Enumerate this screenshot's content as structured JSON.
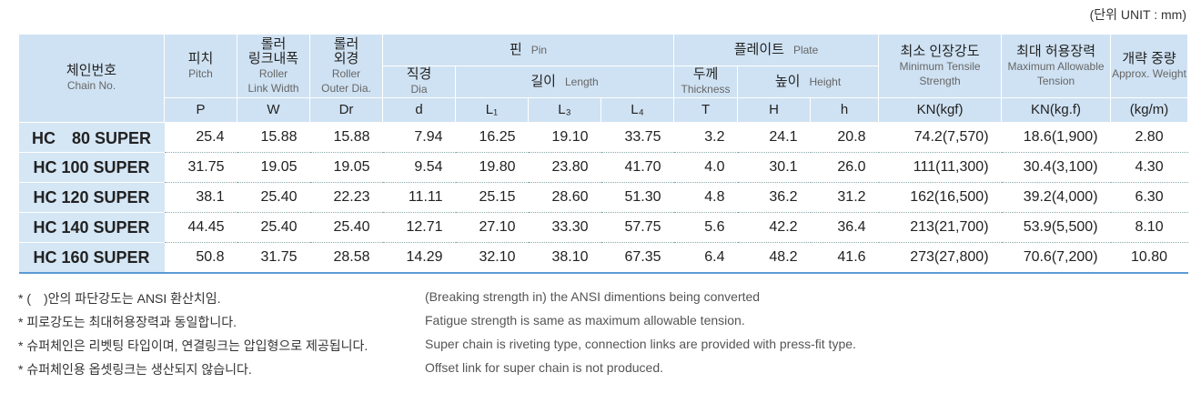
{
  "unit": "(단위 UNIT : mm)",
  "header": {
    "chain": {
      "ko": "체인번호",
      "en": "Chain No."
    },
    "pitch": {
      "ko": "피치",
      "en": "Pitch",
      "sym": "P"
    },
    "width": {
      "ko": [
        "롤러",
        "링크내폭"
      ],
      "en": [
        "Roller",
        "Link Width"
      ],
      "sym": "W"
    },
    "outer": {
      "ko": [
        "롤러",
        "외경"
      ],
      "en": [
        "Roller",
        "Outer Dia."
      ],
      "sym": "Dr"
    },
    "pin": {
      "ko": "핀",
      "en": "Pin"
    },
    "dia": {
      "ko": "직경",
      "en": "Dia",
      "sym": "d"
    },
    "length": {
      "ko": "길이",
      "en": "Length",
      "syms": [
        "L₁",
        "L₃",
        "L₄"
      ]
    },
    "plate": {
      "ko": "플레이트",
      "en": "Plate"
    },
    "thick": {
      "ko": "두께",
      "en": "Thickness",
      "sym": "T"
    },
    "height": {
      "ko": "높이",
      "en": "Height",
      "syms": [
        "H",
        "h"
      ]
    },
    "tensile": {
      "ko": "최소 인장강도",
      "en": [
        "Minimum Tensile",
        "Strength"
      ],
      "sym": "KN(kgf)"
    },
    "allow": {
      "ko": "최대 허용장력",
      "en": [
        "Maximum Allowable",
        "Tension"
      ],
      "sym": "KN(kg.f)"
    },
    "weight": {
      "ko": "개략 중량",
      "en": "Approx. Weight",
      "sym": "(kg/m)"
    }
  },
  "rows": [
    [
      "HC　80 SUPER",
      "25.4",
      "15.88",
      "15.88",
      "7.94",
      "16.25",
      "19.10",
      "33.75",
      "3.2",
      "24.1",
      "20.8",
      "74.2(7,570)",
      "18.6(1,900)",
      "2.80"
    ],
    [
      "HC 100 SUPER",
      "31.75",
      "19.05",
      "19.05",
      "9.54",
      "19.80",
      "23.80",
      "41.70",
      "4.0",
      "30.1",
      "26.0",
      "111(11,300)",
      "30.4(3,100)",
      "4.30"
    ],
    [
      "HC 120 SUPER",
      "38.1",
      "25.40",
      "22.23",
      "11.11",
      "25.15",
      "28.60",
      "51.30",
      "4.8",
      "36.2",
      "31.2",
      "162(16,500)",
      "39.2(4,000)",
      "6.30"
    ],
    [
      "HC 140 SUPER",
      "44.45",
      "25.40",
      "25.40",
      "12.71",
      "27.10",
      "33.30",
      "57.75",
      "5.6",
      "42.2",
      "36.4",
      "213(21,700)",
      "53.9(5,500)",
      "8.10"
    ],
    [
      "HC 160 SUPER",
      "50.8",
      "31.75",
      "28.58",
      "14.29",
      "32.10",
      "38.10",
      "67.35",
      "6.4",
      "48.2",
      "41.6",
      "273(27,800)",
      "70.6(7,200)",
      "10.80"
    ]
  ],
  "notes": [
    {
      "ko": "* (　)안의 파단강도는 ANSI 환산치임.",
      "en": "(Breaking strength in) the ANSI dimentions being converted"
    },
    {
      "ko": "* 피로강도는 최대허용장력과 동일합니다.",
      "en": "Fatigue strength is same as maximum allowable tension."
    },
    {
      "ko": "* 슈퍼체인은 리벳팅 타입이며, 연결링크는 압입형으로 제공됩니다.",
      "en": "Super chain is riveting type, connection links are provided with press-fit type."
    },
    {
      "ko": "* 슈퍼체인용 옵셋링크는 생산되지 않습니다.",
      "en": "Offset link for super chain is not produced."
    }
  ]
}
